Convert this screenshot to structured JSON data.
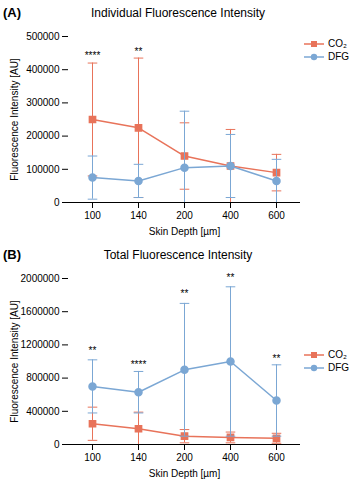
{
  "chart_data": [
    {
      "type": "line",
      "panel_label": "(A)",
      "title": "Individual Fluorescence Intensity",
      "xlabel": "Skin Depth [µm]",
      "ylabel": "Fluorescence Intensity [AU]",
      "categories": [
        "100",
        "140",
        "200",
        "400",
        "600"
      ],
      "ylim": [
        0,
        500000
      ],
      "yticks": [
        0,
        100000,
        200000,
        300000,
        400000,
        500000
      ],
      "grid": false,
      "legend": "upper right",
      "series": [
        {
          "name": "CO₂",
          "color": "#E8735A",
          "marker": "square",
          "values": [
            250000,
            225000,
            140000,
            110000,
            90000
          ],
          "err_up": [
            170000,
            210000,
            100000,
            110000,
            55000
          ],
          "err_down": [
            170000,
            210000,
            100000,
            110000,
            55000
          ]
        },
        {
          "name": "DFG",
          "color": "#7BA7D4",
          "marker": "circle",
          "values": [
            75000,
            65000,
            105000,
            110000,
            65000
          ],
          "err_up": [
            65000,
            50000,
            170000,
            95000,
            65000
          ],
          "err_down": [
            65000,
            50000,
            105000,
            95000,
            65000
          ]
        }
      ],
      "annotations": [
        {
          "x": "100",
          "y": 430000,
          "text": "****"
        },
        {
          "x": "140",
          "y": 440000,
          "text": "**"
        }
      ]
    },
    {
      "type": "line",
      "panel_label": "(B)",
      "title": "Total Fluorescence Intensity",
      "xlabel": "Skin Depth [µm]",
      "ylabel": "Fluorescence Intensity [AU]",
      "categories": [
        "100",
        "140",
        "200",
        "400",
        "600"
      ],
      "ylim": [
        0,
        2000000
      ],
      "yticks": [
        0,
        400000,
        800000,
        1200000,
        1600000,
        2000000
      ],
      "grid": false,
      "legend": "center right",
      "series": [
        {
          "name": "CO₂",
          "color": "#E8735A",
          "marker": "square",
          "values": [
            250000,
            190000,
            100000,
            85000,
            75000
          ],
          "err_up": [
            200000,
            200000,
            80000,
            65000,
            60000
          ],
          "err_down": [
            200000,
            190000,
            80000,
            65000,
            60000
          ]
        },
        {
          "name": "DFG",
          "color": "#7BA7D4",
          "marker": "circle",
          "values": [
            700000,
            630000,
            900000,
            1000000,
            530000
          ],
          "err_up": [
            320000,
            250000,
            800000,
            900000,
            430000
          ],
          "err_down": [
            320000,
            250000,
            800000,
            900000,
            430000
          ]
        }
      ],
      "annotations": [
        {
          "x": "100",
          "y": 1080000,
          "text": "**"
        },
        {
          "x": "140",
          "y": 910000,
          "text": "****"
        },
        {
          "x": "200",
          "y": 1760000,
          "text": "**"
        },
        {
          "x": "400",
          "y": 1960000,
          "text": "**"
        },
        {
          "x": "600",
          "y": 980000,
          "text": "**"
        }
      ]
    }
  ]
}
